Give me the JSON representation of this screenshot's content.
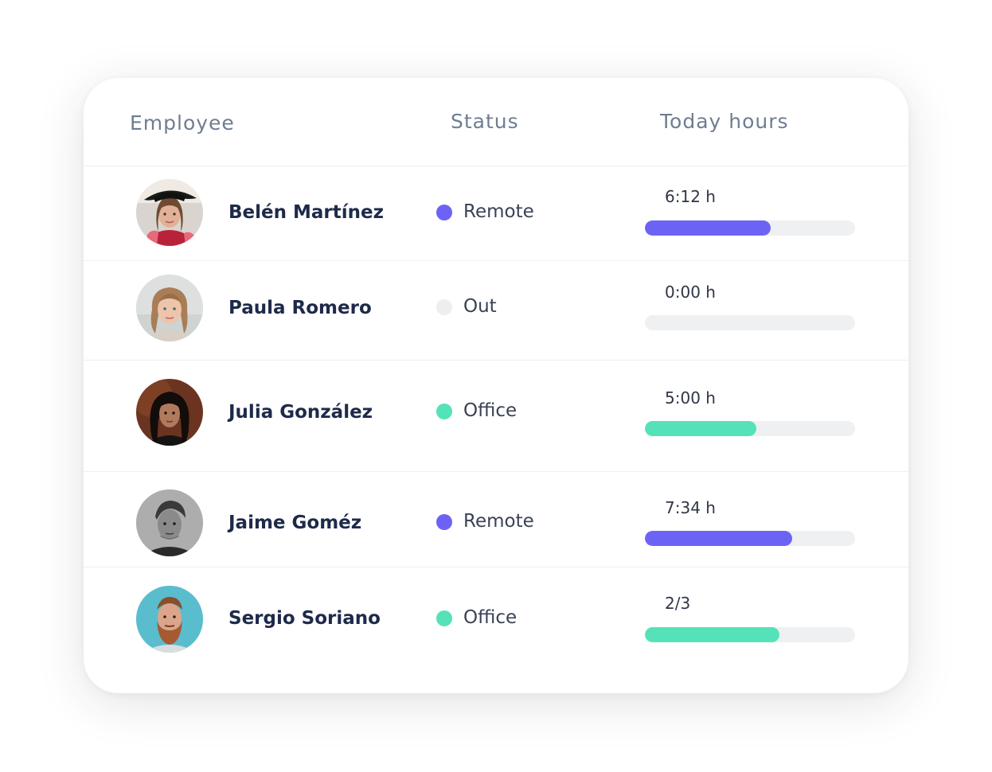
{
  "columns": {
    "employee": "Employee",
    "status": "Status",
    "today_hours": "Today hours"
  },
  "colors": {
    "remote": "#6c63f6",
    "office": "#55e2b8",
    "out": "#eeeeee",
    "track": "#eff0f1"
  },
  "employees": [
    {
      "name": "Belén Martínez",
      "status": "Remote",
      "status_color": "#6c63f6",
      "hours": "6:12 h",
      "progress": 0.6,
      "avatar": "avatar-photo-woman-hat"
    },
    {
      "name": "Paula Romero",
      "status": "Out",
      "status_color": "#eeeeee",
      "hours": "0:00 h",
      "progress": 0.0,
      "avatar": "avatar-photo-woman-blonde"
    },
    {
      "name": "Julia González",
      "status": "Office",
      "status_color": "#55e2b8",
      "hours": "5:00 h",
      "progress": 0.53,
      "avatar": "avatar-photo-woman-dark-hair"
    },
    {
      "name": "Jaime Goméz",
      "status": "Remote",
      "status_color": "#6c63f6",
      "hours": "7:34 h",
      "progress": 0.7,
      "avatar": "avatar-photo-man-bw"
    },
    {
      "name": "Sergio Soriano",
      "status": "Office",
      "status_color": "#55e2b8",
      "hours": "2/3",
      "progress": 0.64,
      "avatar": "avatar-photo-man-beard"
    }
  ]
}
